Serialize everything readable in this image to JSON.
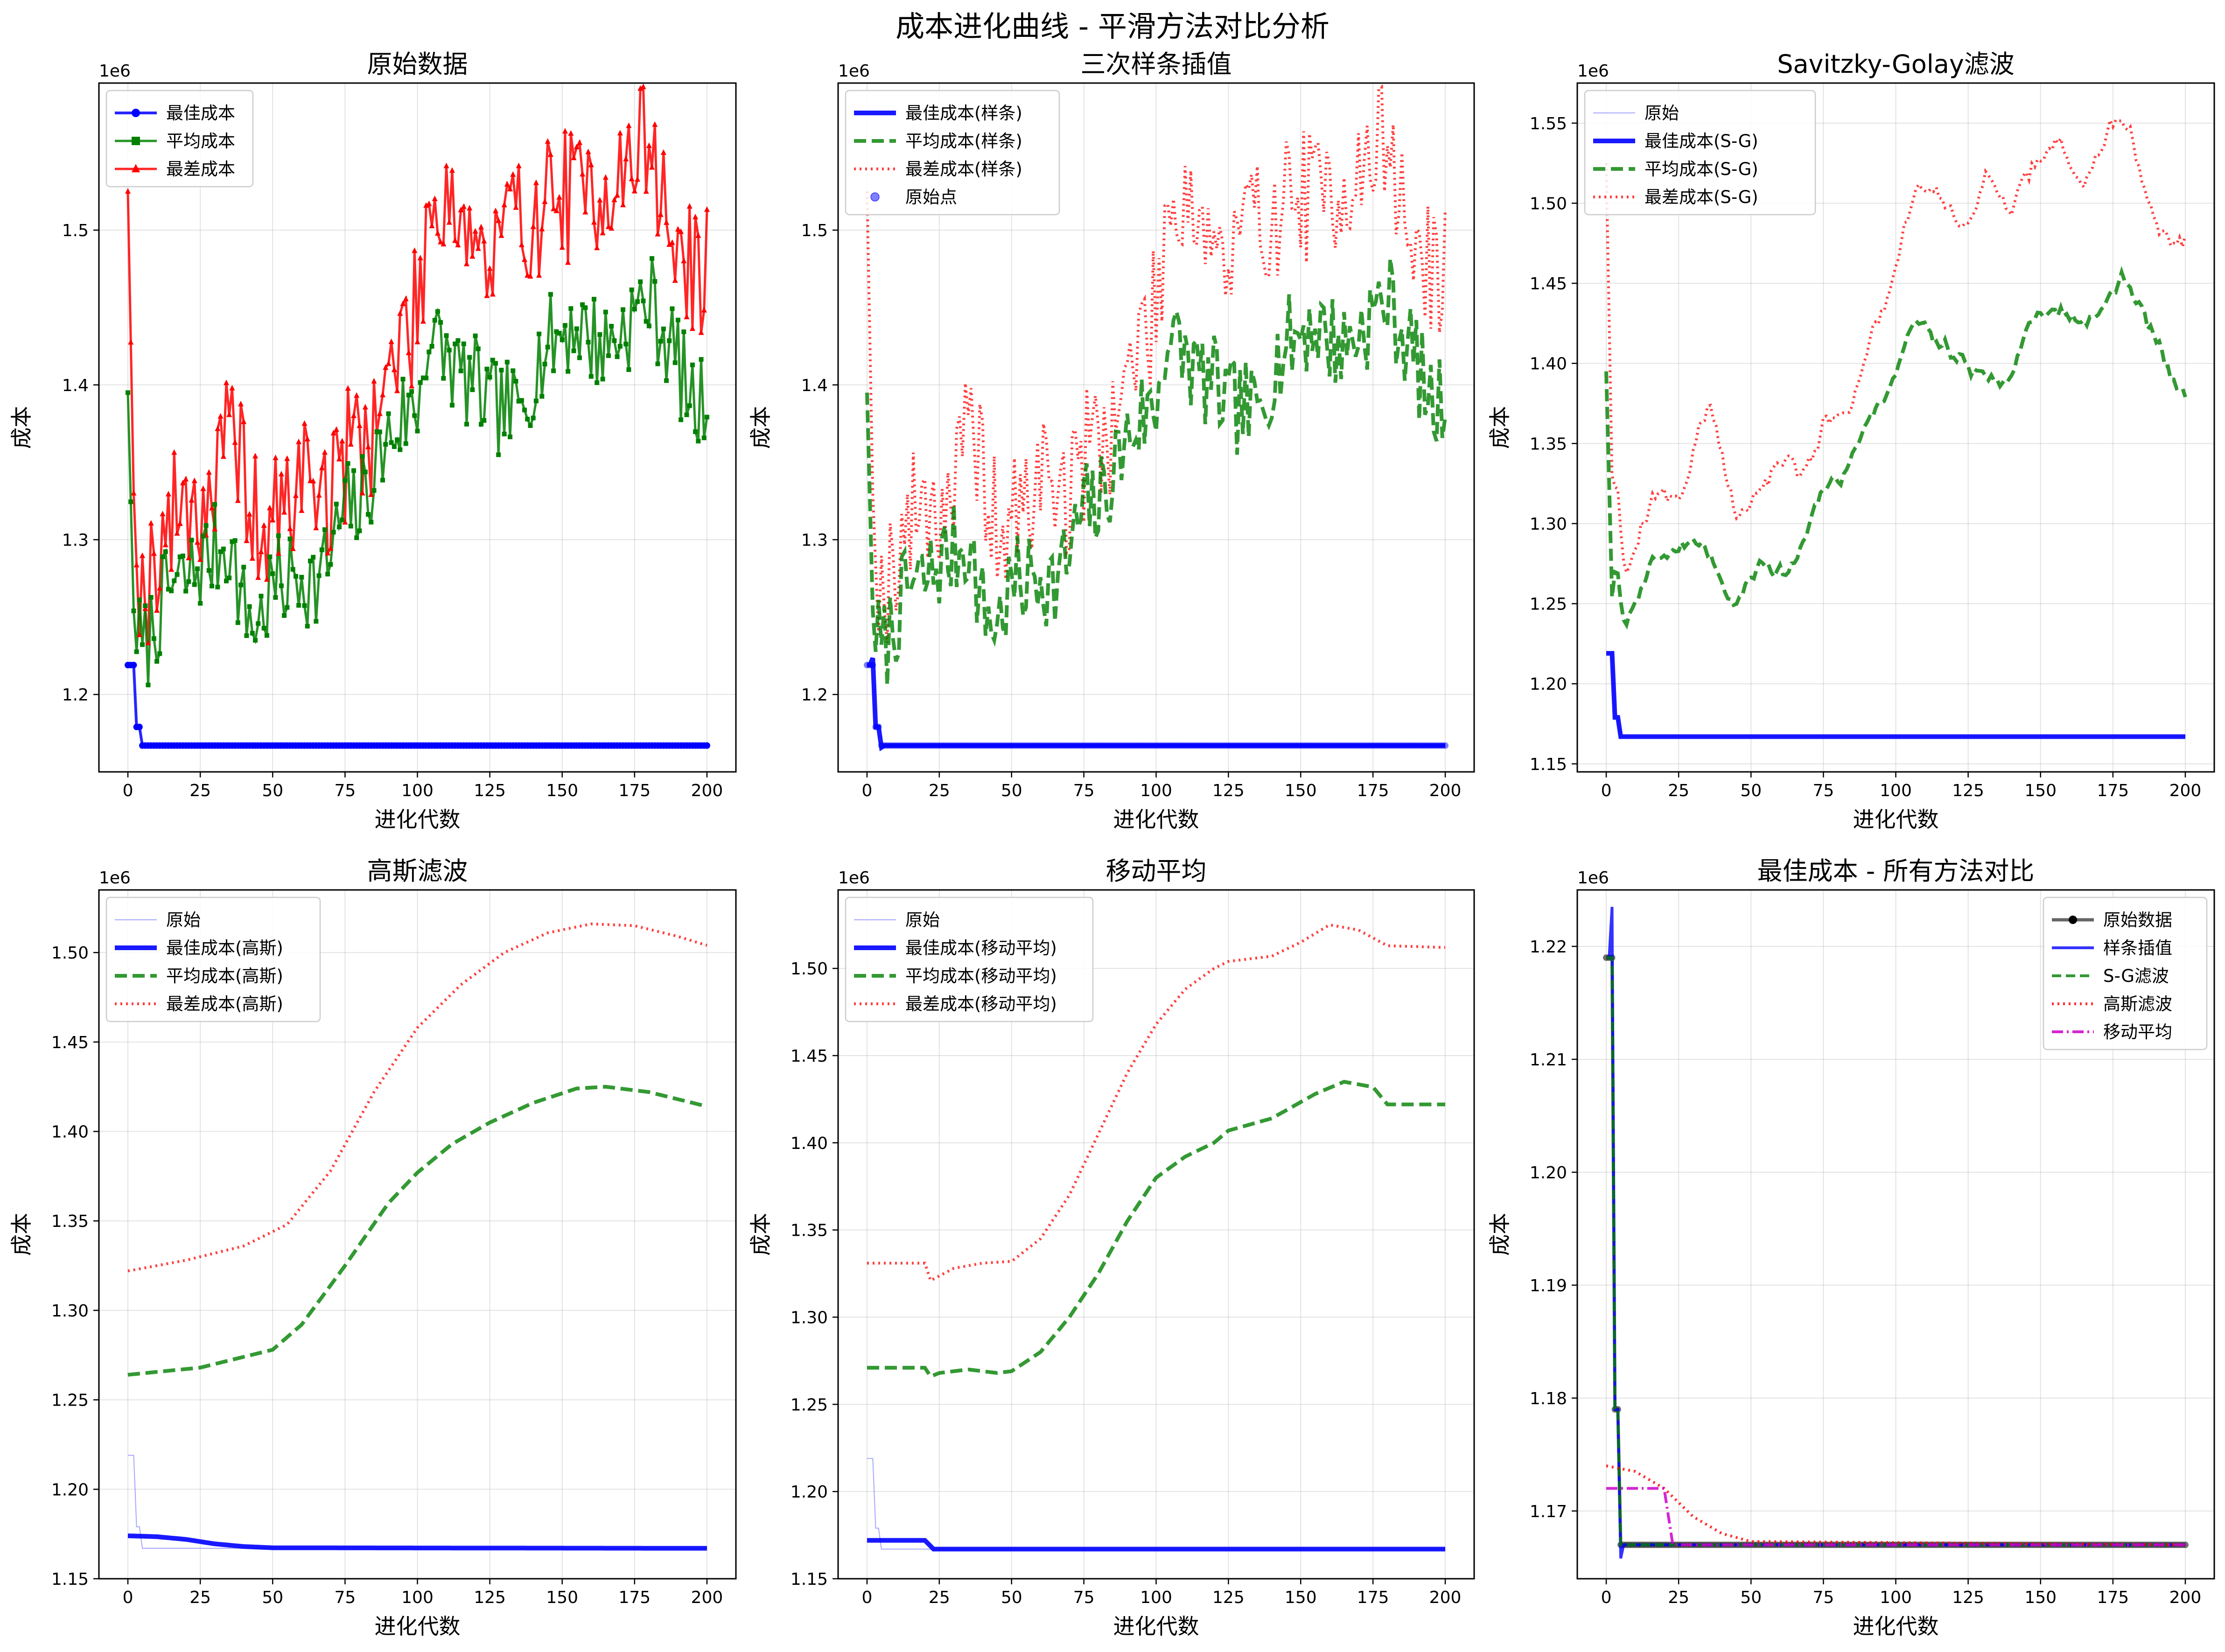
{
  "figure_title": "成本进化曲线 - 平滑方法对比分析",
  "colors": {
    "best": "#0000ff",
    "avg": "#008000",
    "worst": "#ff0000",
    "magenta": "#cc00cc"
  },
  "chart_data": [
    {
      "type": "line",
      "title": "原始数据",
      "xlabel": "进化代数",
      "ylabel": "成本",
      "offset_text": "1e6",
      "grid": true,
      "legend_position": "top-left",
      "xlim": [
        -10,
        210
      ],
      "ylim": [
        1150000,
        1595000
      ],
      "xticks": [
        0,
        25,
        50,
        75,
        100,
        125,
        150,
        175,
        200
      ],
      "yticks": [
        1200000,
        1300000,
        1400000,
        1500000
      ],
      "ytick_labels": [
        "1.2",
        "1.3",
        "1.4",
        "1.5"
      ],
      "series": [
        {
          "name": "最佳成本",
          "key": "best",
          "style": "solid-circle"
        },
        {
          "name": "平均成本",
          "key": "avg",
          "style": "solid-square"
        },
        {
          "name": "最差成本",
          "key": "worst",
          "style": "solid-triangle"
        }
      ]
    },
    {
      "type": "line",
      "title": "三次样条插值",
      "xlabel": "进化代数",
      "ylabel": "成本",
      "offset_text": "1e6",
      "grid": true,
      "legend_position": "top-left",
      "xlim": [
        -10,
        210
      ],
      "ylim": [
        1150000,
        1595000
      ],
      "xticks": [
        0,
        25,
        50,
        75,
        100,
        125,
        150,
        175,
        200
      ],
      "yticks": [
        1200000,
        1300000,
        1400000,
        1500000
      ],
      "ytick_labels": [
        "1.2",
        "1.3",
        "1.4",
        "1.5"
      ],
      "series": [
        {
          "name": "最佳成本(样条)",
          "key": "best",
          "style": "thick-solid"
        },
        {
          "name": "平均成本(样条)",
          "key": "avg",
          "style": "dashed"
        },
        {
          "name": "最差成本(样条)",
          "key": "worst",
          "style": "dotted"
        },
        {
          "name": "原始点",
          "key": "points",
          "style": "scatter"
        }
      ]
    },
    {
      "type": "line",
      "title": "Savitzky-Golay滤波",
      "xlabel": "进化代数",
      "ylabel": "成本",
      "offset_text": "1e6",
      "grid": true,
      "legend_position": "top-left",
      "xlim": [
        -10,
        210
      ],
      "ylim": [
        1145000,
        1575000
      ],
      "xticks": [
        0,
        25,
        50,
        75,
        100,
        125,
        150,
        175,
        200
      ],
      "yticks": [
        1150000,
        1200000,
        1250000,
        1300000,
        1350000,
        1400000,
        1450000,
        1500000,
        1550000
      ],
      "ytick_labels": [
        "1.15",
        "1.20",
        "1.25",
        "1.30",
        "1.35",
        "1.40",
        "1.45",
        "1.50",
        "1.55"
      ],
      "series": [
        {
          "name": "原始",
          "key": "raw",
          "style": "thin"
        },
        {
          "name": "最佳成本(S-G)",
          "key": "best",
          "style": "thick-solid"
        },
        {
          "name": "平均成本(S-G)",
          "key": "avg",
          "style": "dashed"
        },
        {
          "name": "最差成本(S-G)",
          "key": "worst",
          "style": "dotted"
        }
      ]
    },
    {
      "type": "line",
      "title": "高斯滤波",
      "xlabel": "进化代数",
      "ylabel": "成本",
      "offset_text": "1e6",
      "grid": true,
      "legend_position": "top-left",
      "xlim": [
        -10,
        210
      ],
      "ylim": [
        1150000,
        1535000
      ],
      "xticks": [
        0,
        25,
        50,
        75,
        100,
        125,
        150,
        175,
        200
      ],
      "yticks": [
        1150000,
        1200000,
        1250000,
        1300000,
        1350000,
        1400000,
        1450000,
        1500000
      ],
      "ytick_labels": [
        "1.15",
        "1.20",
        "1.25",
        "1.30",
        "1.35",
        "1.40",
        "1.45",
        "1.50"
      ],
      "series": [
        {
          "name": "原始",
          "key": "raw",
          "style": "thin"
        },
        {
          "name": "最佳成本(高斯)",
          "key": "best",
          "style": "thick-solid"
        },
        {
          "name": "平均成本(高斯)",
          "key": "avg",
          "style": "dashed"
        },
        {
          "name": "最差成本(高斯)",
          "key": "worst",
          "style": "dotted"
        }
      ]
    },
    {
      "type": "line",
      "title": "移动平均",
      "xlabel": "进化代数",
      "ylabel": "成本",
      "offset_text": "1e6",
      "grid": true,
      "legend_position": "top-left",
      "xlim": [
        -10,
        210
      ],
      "ylim": [
        1150000,
        1545000
      ],
      "xticks": [
        0,
        25,
        50,
        75,
        100,
        125,
        150,
        175,
        200
      ],
      "yticks": [
        1150000,
        1200000,
        1250000,
        1300000,
        1350000,
        1400000,
        1450000,
        1500000
      ],
      "ytick_labels": [
        "1.15",
        "1.20",
        "1.25",
        "1.30",
        "1.35",
        "1.40",
        "1.45",
        "1.50"
      ],
      "series": [
        {
          "name": "原始",
          "key": "raw",
          "style": "thin"
        },
        {
          "name": "最佳成本(移动平均)",
          "key": "best",
          "style": "thick-solid"
        },
        {
          "name": "平均成本(移动平均)",
          "key": "avg",
          "style": "dashed"
        },
        {
          "name": "最差成本(移动平均)",
          "key": "worst",
          "style": "dotted"
        }
      ]
    },
    {
      "type": "line",
      "title": "最佳成本 - 所有方法对比",
      "xlabel": "进化代数",
      "ylabel": "成本",
      "offset_text": "1e6",
      "grid": true,
      "legend_position": "top-right",
      "xlim": [
        -10,
        210
      ],
      "ylim": [
        1164000,
        1225000
      ],
      "xticks": [
        0,
        25,
        50,
        75,
        100,
        125,
        150,
        175,
        200
      ],
      "yticks": [
        1170000,
        1180000,
        1190000,
        1200000,
        1210000,
        1220000
      ],
      "ytick_labels": [
        "1.17",
        "1.18",
        "1.19",
        "1.20",
        "1.21",
        "1.22"
      ],
      "series": [
        {
          "name": "原始数据",
          "key": "raw",
          "style": "gray-markers"
        },
        {
          "name": "样条插值",
          "key": "spline",
          "style": "blue-solid"
        },
        {
          "name": "S-G滤波",
          "key": "sg",
          "style": "green-dashed"
        },
        {
          "name": "高斯滤波",
          "key": "gauss",
          "style": "red-dotted"
        },
        {
          "name": "移动平均",
          "key": "ma",
          "style": "magenta-dashdot"
        }
      ]
    }
  ],
  "series_values": {
    "generations": [
      0,
      200
    ],
    "best_raw_steps": [
      [
        0,
        1219000
      ],
      [
        2,
        1219000
      ],
      [
        3,
        1179000
      ],
      [
        5,
        1167000
      ],
      [
        200,
        1167000
      ]
    ],
    "avg_anchor": [
      [
        0,
        1395000
      ],
      [
        2,
        1254000
      ],
      [
        5,
        1225000
      ],
      [
        10,
        1250000
      ],
      [
        15,
        1270000
      ],
      [
        20,
        1272000
      ],
      [
        25,
        1285000
      ],
      [
        30,
        1292000
      ],
      [
        35,
        1300000
      ],
      [
        40,
        1255000
      ],
      [
        45,
        1245000
      ],
      [
        50,
        1270000
      ],
      [
        55,
        1272000
      ],
      [
        60,
        1280000
      ],
      [
        65,
        1270000
      ],
      [
        70,
        1290000
      ],
      [
        75,
        1320000
      ],
      [
        80,
        1320000
      ],
      [
        85,
        1345000
      ],
      [
        90,
        1365000
      ],
      [
        95,
        1380000
      ],
      [
        100,
        1385000
      ],
      [
        103,
        1430000
      ],
      [
        110,
        1420000
      ],
      [
        115,
        1405000
      ],
      [
        120,
        1400000
      ],
      [
        125,
        1385000
      ],
      [
        130,
        1385000
      ],
      [
        135,
        1380000
      ],
      [
        140,
        1410000
      ],
      [
        145,
        1425000
      ],
      [
        150,
        1435000
      ],
      [
        155,
        1440000
      ],
      [
        160,
        1430000
      ],
      [
        165,
        1425000
      ],
      [
        170,
        1435000
      ],
      [
        175,
        1445000
      ],
      [
        180,
        1457000
      ],
      [
        185,
        1435000
      ],
      [
        190,
        1415000
      ],
      [
        195,
        1385000
      ],
      [
        200,
        1390000
      ]
    ],
    "worst_anchor": [
      [
        0,
        1525000
      ],
      [
        2,
        1330000
      ],
      [
        5,
        1260000
      ],
      [
        10,
        1295000
      ],
      [
        15,
        1310000
      ],
      [
        20,
        1330000
      ],
      [
        25,
        1320000
      ],
      [
        30,
        1335000
      ],
      [
        35,
        1365000
      ],
      [
        40,
        1350000
      ],
      [
        45,
        1300000
      ],
      [
        50,
        1310000
      ],
      [
        55,
        1320000
      ],
      [
        60,
        1345000
      ],
      [
        65,
        1340000
      ],
      [
        70,
        1325000
      ],
      [
        75,
        1355000
      ],
      [
        80,
        1370000
      ],
      [
        85,
        1375000
      ],
      [
        90,
        1405000
      ],
      [
        95,
        1430000
      ],
      [
        100,
        1445000
      ],
      [
        103,
        1505000
      ],
      [
        110,
        1530000
      ],
      [
        115,
        1510000
      ],
      [
        120,
        1495000
      ],
      [
        125,
        1470000
      ],
      [
        130,
        1500000
      ],
      [
        135,
        1505000
      ],
      [
        140,
        1510000
      ],
      [
        145,
        1520000
      ],
      [
        150,
        1525000
      ],
      [
        155,
        1520000
      ],
      [
        160,
        1525000
      ],
      [
        165,
        1535000
      ],
      [
        170,
        1530000
      ],
      [
        175,
        1545000
      ],
      [
        180,
        1565000
      ],
      [
        185,
        1510000
      ],
      [
        190,
        1490000
      ],
      [
        195,
        1470000
      ],
      [
        200,
        1480000
      ]
    ],
    "gauss_avg": [
      [
        0,
        1264000
      ],
      [
        25,
        1268000
      ],
      [
        50,
        1278000
      ],
      [
        60,
        1292000
      ],
      [
        75,
        1325000
      ],
      [
        90,
        1360000
      ],
      [
        100,
        1377000
      ],
      [
        112,
        1393000
      ],
      [
        125,
        1405000
      ],
      [
        140,
        1416000
      ],
      [
        155,
        1424000
      ],
      [
        165,
        1425000
      ],
      [
        180,
        1422000
      ],
      [
        200,
        1414000
      ]
    ],
    "gauss_worst": [
      [
        0,
        1322000
      ],
      [
        20,
        1328000
      ],
      [
        40,
        1336000
      ],
      [
        55,
        1348000
      ],
      [
        70,
        1378000
      ],
      [
        85,
        1422000
      ],
      [
        100,
        1458000
      ],
      [
        115,
        1482000
      ],
      [
        130,
        1500000
      ],
      [
        145,
        1511000
      ],
      [
        160,
        1516000
      ],
      [
        175,
        1515000
      ],
      [
        190,
        1509000
      ],
      [
        200,
        1504000
      ]
    ],
    "gauss_best": [
      [
        0,
        1174000
      ],
      [
        10,
        1173500
      ],
      [
        20,
        1172000
      ],
      [
        30,
        1169500
      ],
      [
        40,
        1168000
      ],
      [
        50,
        1167300
      ],
      [
        200,
        1167000
      ]
    ],
    "ma_avg": [
      [
        0,
        1271000
      ],
      [
        20,
        1271000
      ],
      [
        22,
        1266000
      ],
      [
        25,
        1268000
      ],
      [
        35,
        1270000
      ],
      [
        45,
        1268000
      ],
      [
        50,
        1269000
      ],
      [
        60,
        1280000
      ],
      [
        70,
        1300000
      ],
      [
        80,
        1325000
      ],
      [
        90,
        1355000
      ],
      [
        100,
        1380000
      ],
      [
        110,
        1392000
      ],
      [
        120,
        1400000
      ],
      [
        125,
        1407000
      ],
      [
        140,
        1414000
      ],
      [
        155,
        1428000
      ],
      [
        165,
        1435000
      ],
      [
        175,
        1432000
      ],
      [
        180,
        1422000
      ],
      [
        200,
        1422000
      ]
    ],
    "ma_worst": [
      [
        0,
        1331000
      ],
      [
        20,
        1331000
      ],
      [
        22,
        1321000
      ],
      [
        30,
        1328000
      ],
      [
        40,
        1331000
      ],
      [
        50,
        1332000
      ],
      [
        60,
        1345000
      ],
      [
        70,
        1370000
      ],
      [
        80,
        1405000
      ],
      [
        90,
        1440000
      ],
      [
        100,
        1468000
      ],
      [
        110,
        1488000
      ],
      [
        120,
        1500000
      ],
      [
        125,
        1504000
      ],
      [
        140,
        1507000
      ],
      [
        150,
        1515000
      ],
      [
        160,
        1525000
      ],
      [
        170,
        1522000
      ],
      [
        180,
        1513000
      ],
      [
        200,
        1512000
      ]
    ],
    "ma_best": [
      [
        0,
        1172000
      ],
      [
        20,
        1172000
      ],
      [
        23,
        1167000
      ],
      [
        200,
        1167000
      ]
    ]
  }
}
